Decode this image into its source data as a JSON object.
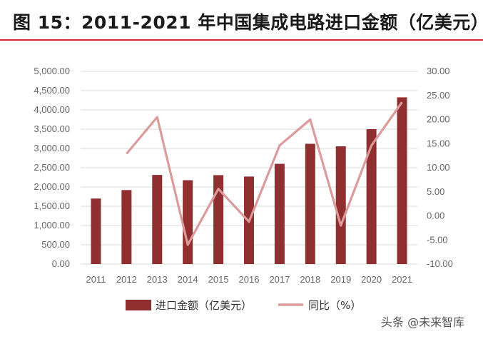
{
  "title": "图 15：2011-2021 年中国集成电路进口金额（亿美元）",
  "watermark": "头条 @未来智库",
  "colors": {
    "bar": "#8f2f2f",
    "line": "#dc9a9a",
    "title_rule": "#d62b2b",
    "grid": "#d9d9d9"
  },
  "chart_data": {
    "type": "bar",
    "categories": [
      "2011",
      "2012",
      "2013",
      "2014",
      "2015",
      "2016",
      "2017",
      "2018",
      "2019",
      "2020",
      "2021"
    ],
    "series": [
      {
        "name": "进口金额（亿美元）",
        "type": "bar",
        "axis": "left",
        "values": [
          1700,
          1920,
          2313,
          2176,
          2307,
          2271,
          2601,
          3121,
          3056,
          3500,
          4326
        ]
      },
      {
        "name": "同比（%）",
        "type": "line",
        "axis": "right",
        "values": [
          null,
          12.9,
          20.5,
          -6.0,
          5.6,
          -1.2,
          14.6,
          20.0,
          -2.0,
          14.6,
          23.6
        ]
      }
    ],
    "y_left": {
      "lim": [
        0,
        5000
      ],
      "step": 500,
      "tick_labels": [
        "0.00",
        "500.00",
        "1,000.00",
        "1,500.00",
        "2,000.00",
        "2,500.00",
        "3,000.00",
        "3,500.00",
        "4,000.00",
        "4,500.00",
        "5,000.00"
      ]
    },
    "y_right": {
      "lim": [
        -10,
        30
      ],
      "step": 5,
      "tick_labels": [
        "-10.00",
        "-5.00",
        "0.00",
        "5.00",
        "10.00",
        "15.00",
        "20.00",
        "25.00",
        "30.00"
      ]
    },
    "grid": true,
    "legend": "bottom"
  }
}
